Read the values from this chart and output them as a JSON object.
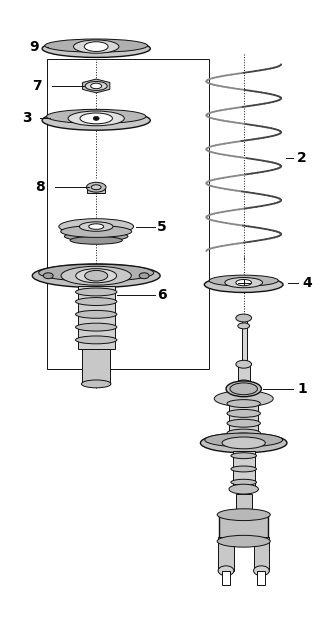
{
  "background_color": "#ffffff",
  "line_color": "#111111",
  "figsize": [
    3.34,
    6.38
  ],
  "dpi": 100,
  "lcx": 0.3,
  "rcx": 0.68,
  "label_fontsize": 10
}
